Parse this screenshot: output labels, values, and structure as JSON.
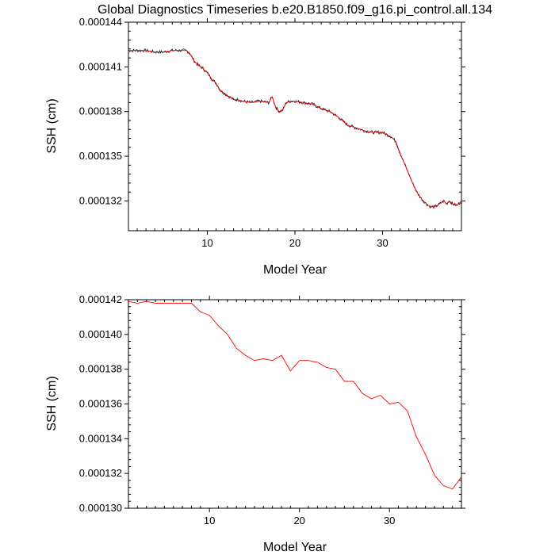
{
  "chart_data": [
    {
      "type": "line",
      "title": "Global Diagnostics Timeseries b.e20.B1850.f09_g16.pi_control.all.134",
      "xlabel": "Model Year",
      "ylabel": "SSH (cm)",
      "xlim": [
        1,
        39
      ],
      "ylim": [
        0.00013,
        0.000144
      ],
      "xticks": [
        10,
        20,
        30
      ],
      "yticks": [
        0.000132,
        0.000135,
        0.000138,
        0.000141,
        0.000144
      ],
      "ytick_labels": [
        "0.000132",
        "0.000135",
        "0.000138",
        "0.000141",
        "0.000144"
      ],
      "series": [
        {
          "color": "#000000",
          "noisy": true,
          "x": [
            1.0,
            2.0,
            3.0,
            4.0,
            5.0,
            6.0,
            7.0,
            7.6,
            8.0,
            8.5,
            9.0,
            9.5,
            10.0,
            10.5,
            11.0,
            11.5,
            12.0,
            12.5,
            13.0,
            13.5,
            14.0,
            15.0,
            16.0,
            17.0,
            17.4,
            17.8,
            18.2,
            18.6,
            19.0,
            19.5,
            20.0,
            21.0,
            22.0,
            23.0,
            24.0,
            25.0,
            26.0,
            27.0,
            28.0,
            29.0,
            30.0,
            31.0,
            31.5,
            32.0,
            32.5,
            33.0,
            33.5,
            34.0,
            34.5,
            35.0,
            35.5,
            36.0,
            36.5,
            37.0,
            37.3,
            37.6,
            38.0,
            38.5,
            39.0
          ],
          "values": [
            0.0001421,
            0.0001421,
            0.0001421,
            0.000142,
            0.000142,
            0.0001421,
            0.0001421,
            0.0001421,
            0.0001419,
            0.0001414,
            0.0001411,
            0.0001409,
            0.0001406,
            0.0001402,
            0.0001399,
            0.0001394,
            0.0001392,
            0.000139,
            0.0001388,
            0.0001388,
            0.0001387,
            0.0001386,
            0.0001387,
            0.0001386,
            0.000139,
            0.0001383,
            0.000138,
            0.0001381,
            0.0001386,
            0.0001387,
            0.0001387,
            0.0001386,
            0.0001385,
            0.0001382,
            0.000138,
            0.0001376,
            0.0001371,
            0.0001369,
            0.0001367,
            0.0001366,
            0.0001366,
            0.0001363,
            0.000136,
            0.0001352,
            0.0001345,
            0.0001338,
            0.0001331,
            0.0001325,
            0.0001321,
            0.0001318,
            0.0001316,
            0.0001316,
            0.0001318,
            0.000132,
            0.0001318,
            0.000132,
            0.0001318,
            0.0001317,
            0.000132
          ]
        },
        {
          "color": "#ff0000",
          "noisy": false,
          "x": [
            1.0,
            2.0,
            3.0,
            4.0,
            5.0,
            6.0,
            7.0,
            7.6,
            8.0,
            8.5,
            9.0,
            9.5,
            10.0,
            10.5,
            11.0,
            11.5,
            12.0,
            12.5,
            13.0,
            13.5,
            14.0,
            15.0,
            16.0,
            17.0,
            17.4,
            17.8,
            18.2,
            18.6,
            19.0,
            19.5,
            20.0,
            21.0,
            22.0,
            23.0,
            24.0,
            25.0,
            26.0,
            27.0,
            28.0,
            29.0,
            30.0,
            31.0,
            31.5,
            32.0,
            32.5,
            33.0,
            33.5,
            34.0,
            34.5,
            35.0,
            35.5,
            36.0,
            36.5,
            37.0,
            37.3,
            37.6,
            38.0,
            38.5,
            39.0
          ],
          "values": [
            0.0001421,
            0.0001421,
            0.0001421,
            0.000142,
            0.000142,
            0.0001421,
            0.0001421,
            0.0001421,
            0.0001419,
            0.0001414,
            0.0001411,
            0.0001409,
            0.0001406,
            0.0001402,
            0.0001399,
            0.0001394,
            0.0001392,
            0.000139,
            0.0001388,
            0.0001388,
            0.0001387,
            0.0001386,
            0.0001387,
            0.0001386,
            0.000139,
            0.0001383,
            0.000138,
            0.0001381,
            0.0001386,
            0.0001387,
            0.0001387,
            0.0001386,
            0.0001385,
            0.0001382,
            0.000138,
            0.0001376,
            0.0001371,
            0.0001369,
            0.0001367,
            0.0001366,
            0.0001366,
            0.0001363,
            0.000136,
            0.0001352,
            0.0001345,
            0.0001338,
            0.0001331,
            0.0001325,
            0.0001321,
            0.0001318,
            0.0001316,
            0.0001316,
            0.0001318,
            0.000132,
            0.0001318,
            0.000132,
            0.0001318,
            0.0001317,
            0.000132
          ]
        }
      ]
    },
    {
      "type": "line",
      "title": "",
      "xlabel": "Model Year",
      "ylabel": "SSH (cm)",
      "xlim": [
        1,
        38
      ],
      "ylim": [
        0.00013,
        0.000142
      ],
      "xticks": [
        10,
        20,
        30
      ],
      "yticks": [
        0.00013,
        0.000132,
        0.000134,
        0.000136,
        0.000138,
        0.00014,
        0.000142
      ],
      "ytick_labels": [
        "0.000130",
        "0.000132",
        "0.000134",
        "0.000136",
        "0.000138",
        "0.000140",
        "0.000142"
      ],
      "series": [
        {
          "color": "#ff0000",
          "noisy": false,
          "x": [
            1,
            2,
            3,
            4,
            5,
            6,
            7,
            8,
            9,
            10,
            11,
            12,
            13,
            14,
            15,
            16,
            17,
            18,
            19,
            20,
            21,
            22,
            23,
            24,
            25,
            26,
            27,
            28,
            29,
            30,
            31,
            32,
            33,
            34,
            35,
            36,
            37,
            38
          ],
          "values": [
            0.0001419,
            0.0001418,
            0.0001419,
            0.0001418,
            0.0001418,
            0.0001418,
            0.0001418,
            0.0001418,
            0.0001413,
            0.0001411,
            0.0001405,
            0.00014,
            0.0001392,
            0.0001388,
            0.0001385,
            0.0001386,
            0.0001385,
            0.0001388,
            0.0001379,
            0.0001385,
            0.0001385,
            0.0001384,
            0.0001381,
            0.000138,
            0.0001373,
            0.0001373,
            0.0001366,
            0.0001363,
            0.0001365,
            0.000136,
            0.0001361,
            0.0001356,
            0.0001341,
            0.0001331,
            0.0001319,
            0.0001313,
            0.0001311,
            0.0001318
          ]
        }
      ]
    }
  ]
}
